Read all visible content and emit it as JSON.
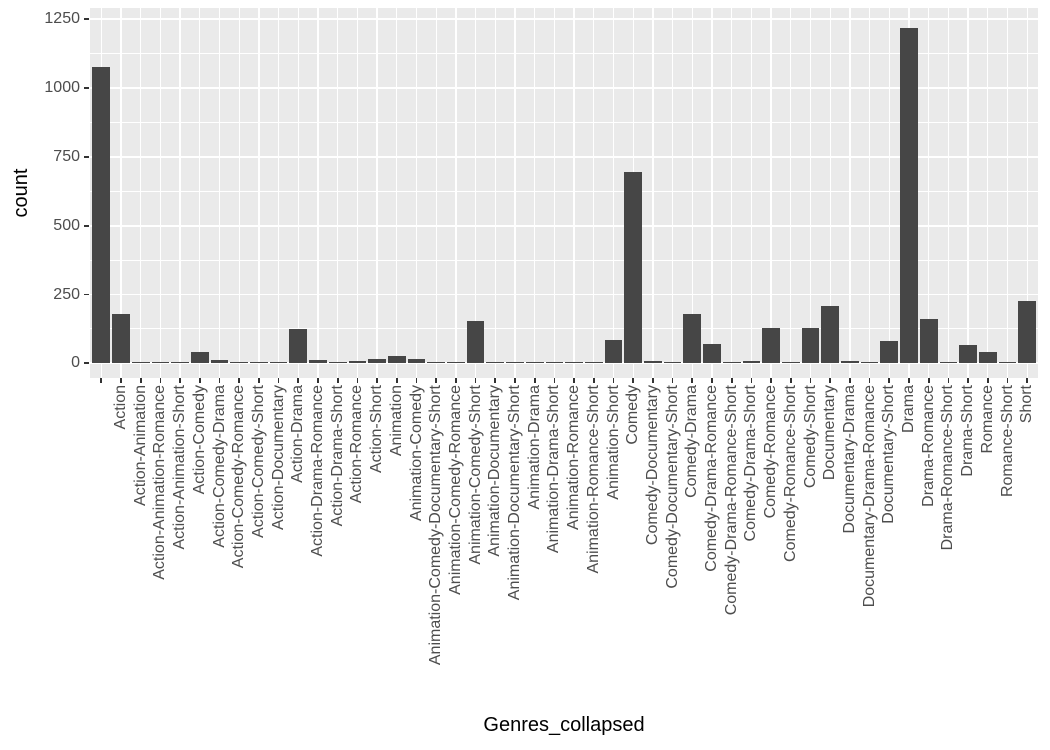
{
  "chart_data": {
    "type": "bar",
    "title": "",
    "xlabel": "Genres_collapsed",
    "ylabel": "count",
    "ylim": [
      0,
      1250
    ],
    "y_major_ticks": [
      0,
      250,
      500,
      750,
      1000,
      1250
    ],
    "y_minor_gridlines": [
      125,
      375,
      625,
      875,
      1125
    ],
    "grid": "on",
    "legend": "none",
    "categories": [
      "",
      "Action",
      "Action-Animation",
      "Action-Animation-Romance",
      "Action-Animation-Short",
      "Action-Comedy",
      "Action-Comedy-Drama",
      "Action-Comedy-Romance",
      "Action-Comedy-Short",
      "Action-Documentary",
      "Action-Drama",
      "Action-Drama-Romance",
      "Action-Drama-Short",
      "Action-Romance",
      "Action-Short",
      "Animation",
      "Animation-Comedy",
      "Animation-Comedy-Documentary-Short",
      "Animation-Comedy-Romance",
      "Animation-Comedy-Short",
      "Animation-Documentary",
      "Animation-Documentary-Short",
      "Animation-Drama",
      "Animation-Drama-Short",
      "Animation-Romance",
      "Animation-Romance-Short",
      "Animation-Short",
      "Comedy",
      "Comedy-Documentary",
      "Comedy-Documentary-Short",
      "Comedy-Drama",
      "Comedy-Drama-Romance",
      "Comedy-Drama-Romance-Short",
      "Comedy-Drama-Short",
      "Comedy-Romance",
      "Comedy-Romance-Short",
      "Comedy-Short",
      "Documentary",
      "Documentary-Drama",
      "Documentary-Drama-Romance",
      "Documentary-Short",
      "Drama",
      "Drama-Romance",
      "Drama-Romance-Short",
      "Drama-Short",
      "Romance",
      "Romance-Short",
      "Short"
    ],
    "values": [
      1075,
      180,
      2,
      1,
      1,
      40,
      13,
      5,
      6,
      2,
      125,
      12,
      3,
      10,
      15,
      25,
      15,
      2,
      2,
      155,
      2,
      2,
      2,
      1,
      1,
      1,
      85,
      695,
      10,
      2,
      180,
      70,
      2,
      10,
      128,
      2,
      130,
      210,
      10,
      2,
      80,
      1220,
      160,
      2,
      65,
      40,
      2,
      225
    ]
  },
  "style": {
    "panel_bg": "#EAEAEA",
    "bar_fill": "#464646",
    "grid_color": "#FFFFFF",
    "tick_color": "#333333",
    "tick_label_color": "#4D4D4D",
    "axis_title_color": "#000000"
  }
}
